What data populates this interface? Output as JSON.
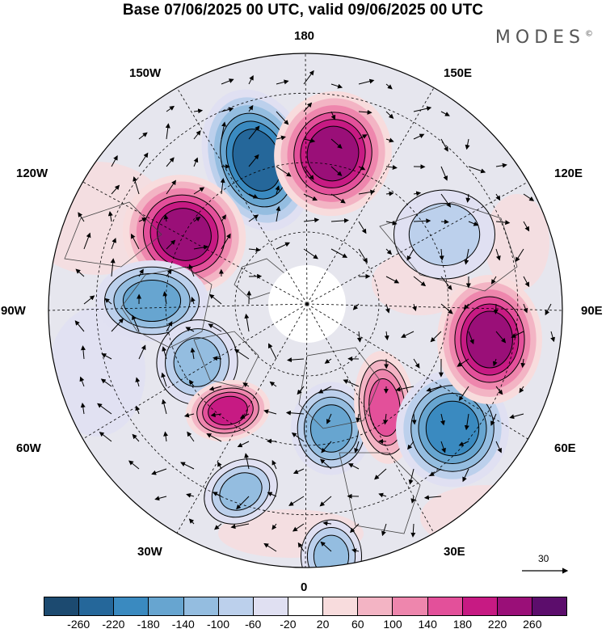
{
  "header": {
    "title": "Base 07/06/2025 00 UTC, valid 09/06/2025 00 UTC",
    "brand": "MODES",
    "brand_mark": "©"
  },
  "map": {
    "projection": "north-polar-stereographic",
    "labels": {
      "top": "180",
      "top_left": "150W",
      "top_right": "150E",
      "upper_left": "120W",
      "upper_right": "120E",
      "left": "90W",
      "right": "90E",
      "lower_left": "60W",
      "lower_right": "60E",
      "bottom_left": "30W",
      "bottom_right": "30E",
      "bottom": "0"
    },
    "reference_vector": "30",
    "anomaly_centers": [
      {
        "sign": "negative",
        "level": -220,
        "near": "Alaska / Bering"
      },
      {
        "sign": "positive",
        "level": 220,
        "near": "Eastern Siberia"
      },
      {
        "sign": "positive",
        "level": 220,
        "near": "Western Canada"
      },
      {
        "sign": "negative",
        "level": -140,
        "near": "Hudson Bay"
      },
      {
        "sign": "negative",
        "level": -100,
        "near": "Labrador"
      },
      {
        "sign": "positive",
        "level": 180,
        "near": "Greenland south"
      },
      {
        "sign": "negative",
        "level": -100,
        "near": "North Atlantic"
      },
      {
        "sign": "negative",
        "level": -140,
        "near": "Barents Sea"
      },
      {
        "sign": "positive",
        "level": 140,
        "near": "Ural"
      },
      {
        "sign": "negative",
        "level": -180,
        "near": "Caspian / Central Asia"
      },
      {
        "sign": "positive",
        "level": 220,
        "near": "Central Siberia"
      },
      {
        "sign": "negative",
        "level": -100,
        "near": "North Africa"
      },
      {
        "sign": "negative",
        "level": -60,
        "near": "Mongolia"
      }
    ]
  },
  "colorbar": {
    "colors": [
      "#1c4a70",
      "#25679a",
      "#3a8ac0",
      "#67a5d0",
      "#94bde0",
      "#bcd0ec",
      "#e0e0f2",
      "#ffffff",
      "#f8dcdd",
      "#f3b4c4",
      "#ee86ad",
      "#e3509a",
      "#c71a83",
      "#9a0f78",
      "#5c0d6c"
    ],
    "ticks": [
      "-260",
      "-220",
      "-180",
      "-140",
      "-100",
      "-60",
      "-20",
      "20",
      "60",
      "100",
      "140",
      "180",
      "220",
      "260"
    ]
  }
}
